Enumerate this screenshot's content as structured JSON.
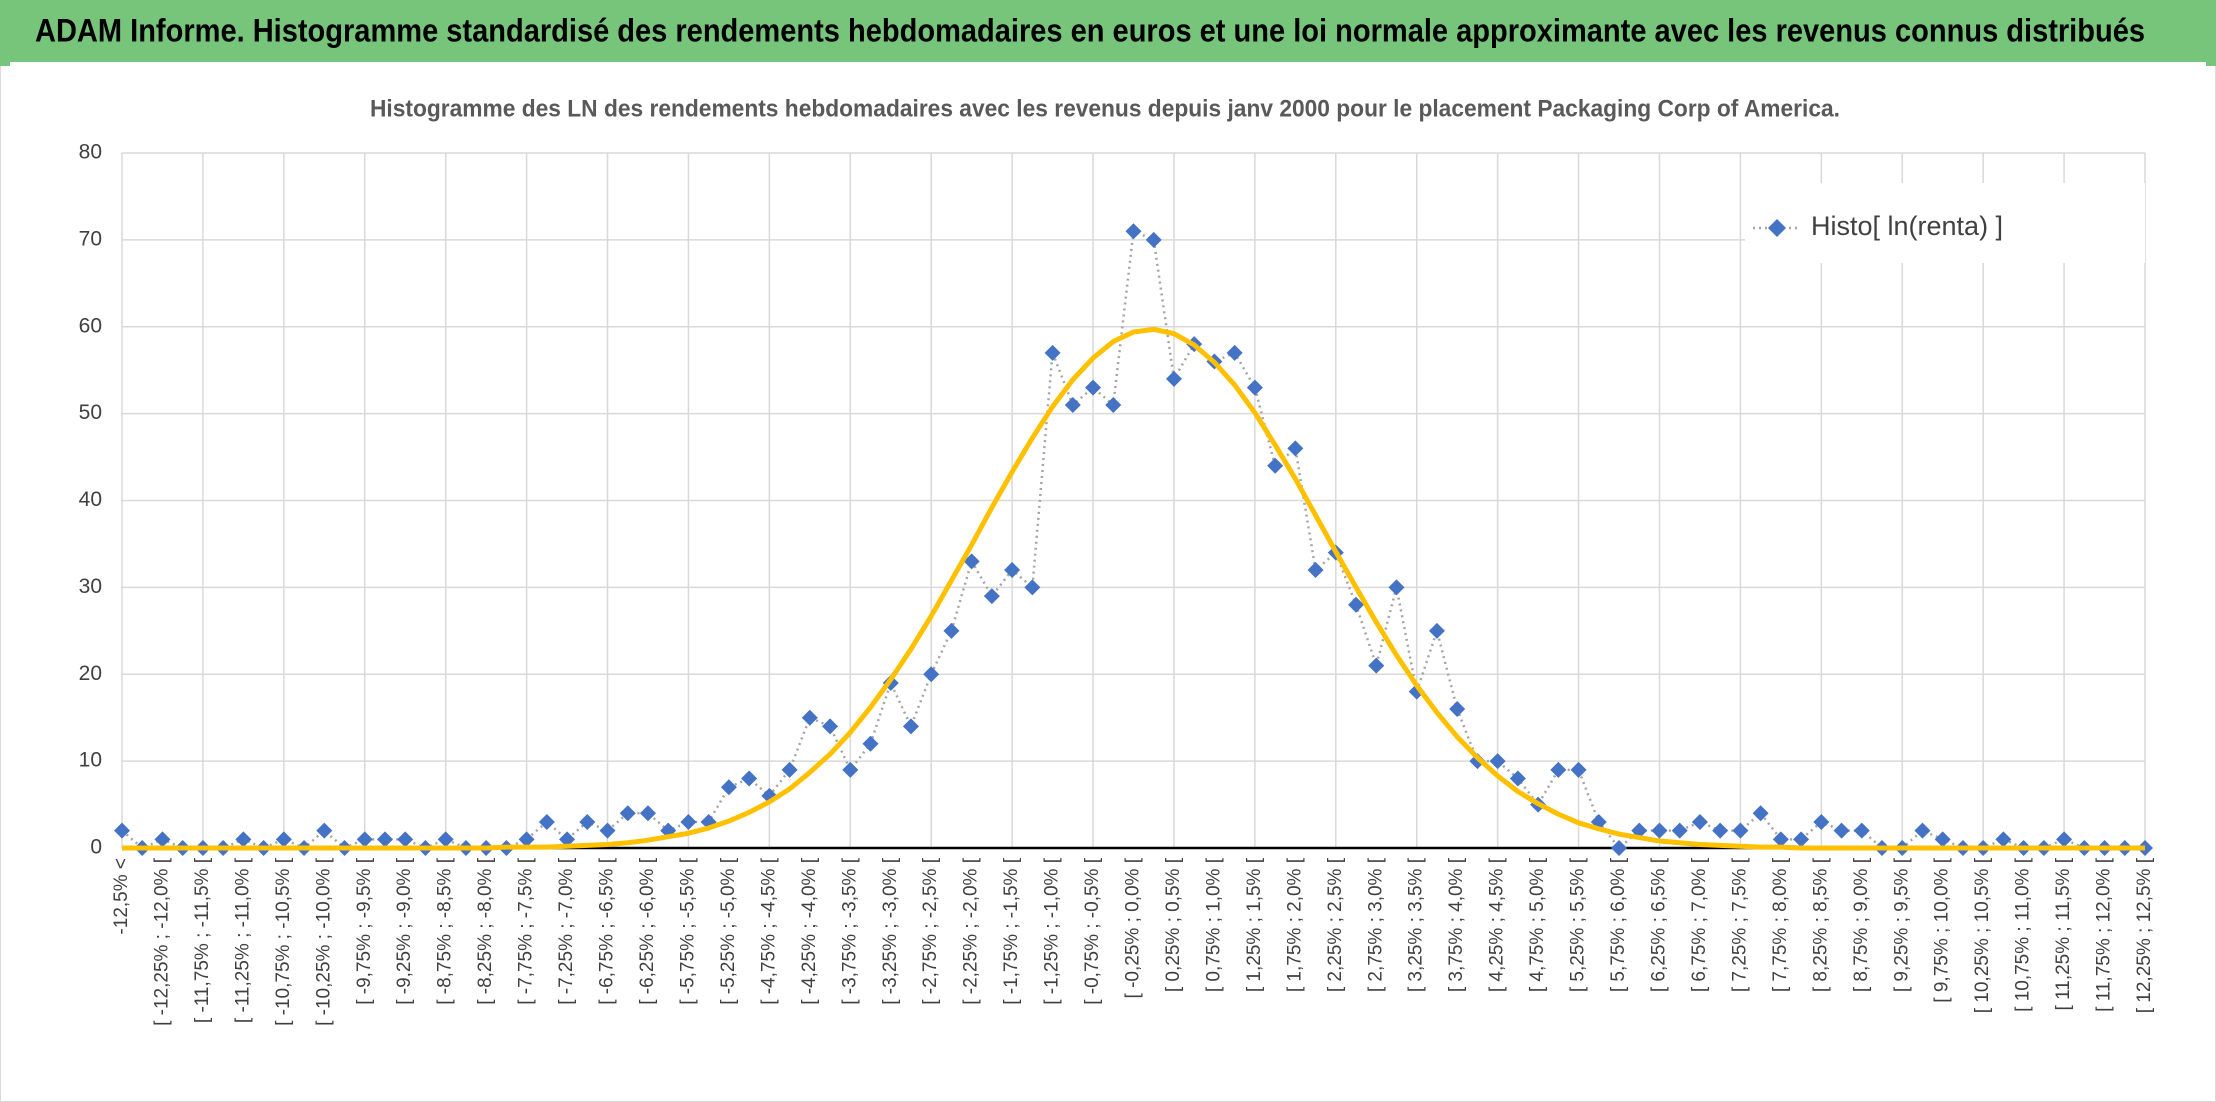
{
  "header": {
    "title": "ADAM Informe. Histogramme standardisé des rendements hebdomadaires en euros et une loi normale approximante avec les revenus connus distribués"
  },
  "chart_data": {
    "type": "line",
    "title": "Histogramme des LN des rendements hebdomadaires avec les revenus depuis janv 2000 pour le placement Packaging Corp of America.",
    "categories": [
      "-12,5% <",
      null,
      "[ -12,25% ; -12,0% [",
      null,
      "[ -11,75% ; -11,5% [",
      null,
      "[ -11,25% ; -11,0% [",
      null,
      "[ -10,75% ; -10,5% [",
      null,
      "[ -10,25% ; -10,0% [",
      null,
      "[ -9,75% ; -9,5% [",
      null,
      "[ -9,25% ; -9,0% [",
      null,
      "[ -8,75% ; -8,5% [",
      null,
      "[ -8,25% ; -8,0% [",
      null,
      "[ -7,75% ; -7,5% [",
      null,
      "[ -7,25% ; -7,0% [",
      null,
      "[ -6,75% ; -6,5% [",
      null,
      "[ -6,25% ; -6,0% [",
      null,
      "[ -5,75% ; -5,5% [",
      null,
      "[ -5,25% ; -5,0% [",
      null,
      "[ -4,75% ; -4,5% [",
      null,
      "[ -4,25% ; -4,0% [",
      null,
      "[ -3,75% ; -3,5% [",
      null,
      "[ -3,25% ; -3,0% [",
      null,
      "[ -2,75% ; -2,5% [",
      null,
      "[ -2,25% ; -2,0% [",
      null,
      "[ -1,75% ; -1,5% [",
      null,
      "[ -1,25% ; -1,0% [",
      null,
      "[ -0,75% ; -0,5% [",
      null,
      "[ -0,25% ; 0,0% [",
      null,
      "[ 0,25% ; 0,5% [",
      null,
      "[ 0,75% ; 1,0% [",
      null,
      "[ 1,25% ; 1,5% [",
      null,
      "[ 1,75% ; 2,0% [",
      null,
      "[ 2,25% ; 2,5% [",
      null,
      "[ 2,75% ; 3,0% [",
      null,
      "[ 3,25% ; 3,5% [",
      null,
      "[ 3,75% ; 4,0% [",
      null,
      "[ 4,25% ; 4,5% [",
      null,
      "[ 4,75% ; 5,0% [",
      null,
      "[ 5,25% ; 5,5% [",
      null,
      "[ 5,75% ; 6,0% [",
      null,
      "[ 6,25% ; 6,5% [",
      null,
      "[ 6,75% ; 7,0% [",
      null,
      "[ 7,25% ; 7,5% [",
      null,
      "[ 7,75% ; 8,0% [",
      null,
      "[ 8,25% ; 8,5% [",
      null,
      "[ 8,75% ; 9,0% [",
      null,
      "[ 9,25% ; 9,5% [",
      null,
      "[ 9,75% ; 10,0% [",
      null,
      "[ 10,25% ; 10,5% [",
      null,
      "[ 10,75% ; 11,0% [",
      null,
      "[ 11,25% ; 11,5% [",
      null,
      "[ 11,75% ; 12,0% [",
      null,
      "[ 12,25% ; 12,5% ["
    ],
    "series": [
      {
        "name": "Histo[ ln(renta) ]",
        "color": "#4472c4",
        "line_color": "#a5a5a5",
        "marker": "diamond",
        "values": [
          2,
          0,
          1,
          0,
          0,
          0,
          1,
          0,
          1,
          0,
          2,
          0,
          1,
          1,
          1,
          0,
          1,
          0,
          0,
          0,
          1,
          3,
          1,
          3,
          2,
          4,
          4,
          2,
          3,
          3,
          7,
          8,
          6,
          9,
          15,
          14,
          9,
          12,
          19,
          14,
          20,
          25,
          33,
          29,
          32,
          30,
          57,
          51,
          53,
          51,
          71,
          70,
          54,
          58,
          56,
          57,
          53,
          44,
          46,
          32,
          34,
          28,
          21,
          30,
          18,
          25,
          16,
          10,
          10,
          8,
          5,
          9,
          9,
          3,
          0,
          2,
          2,
          2,
          3,
          2,
          2,
          4,
          1,
          1,
          3,
          2,
          2,
          0,
          0,
          2,
          1,
          0,
          0,
          1,
          0,
          0,
          1,
          0,
          0,
          0,
          0
        ]
      },
      {
        "color": "#ffc000",
        "values": [
          0,
          0,
          0,
          0,
          0,
          0,
          0,
          0,
          0,
          0,
          0,
          0,
          0,
          0,
          0,
          0,
          0,
          0,
          0,
          0.1,
          0.1,
          0.1,
          0.2,
          0.3,
          0.4,
          0.6,
          0.9,
          1.3,
          1.7,
          2.3,
          3.1,
          4.1,
          5.3,
          6.8,
          8.7,
          10.8,
          13.3,
          16.2,
          19.4,
          22.9,
          26.7,
          30.8,
          34.9,
          39.2,
          43.3,
          47.2,
          50.8,
          53.9,
          56.4,
          58.3,
          59.4,
          59.7,
          59.2,
          57.9,
          55.9,
          53.3,
          50.1,
          46.4,
          42.5,
          38.3,
          34.1,
          30.0,
          26.0,
          22.2,
          18.7,
          15.6,
          12.8,
          10.4,
          8.3,
          6.5,
          5.1,
          3.9,
          2.9,
          2.2,
          1.6,
          1.2,
          0.8,
          0.6,
          0.4,
          0.3,
          0.2,
          0.1,
          0.1,
          0,
          0,
          0,
          0,
          0,
          0,
          0,
          0,
          0,
          0,
          0,
          0,
          0,
          0,
          0,
          0,
          0,
          0
        ]
      }
    ],
    "ylim": [
      0,
      80
    ],
    "yticks": [
      0,
      10,
      20,
      30,
      40,
      50,
      60,
      70,
      80
    ],
    "grid": true,
    "legend": "top-right"
  }
}
